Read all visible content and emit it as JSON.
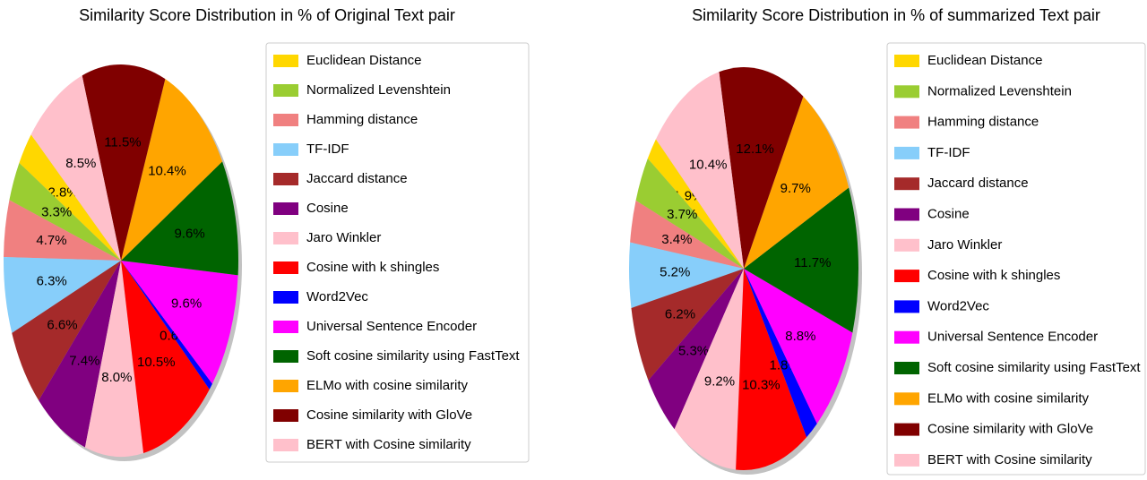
{
  "chart_data": [
    {
      "type": "pie",
      "title": "Similarity Score Distribution in % of Original Text pair",
      "categories": [
        "Euclidean Distance",
        "Normalized Levenshtein",
        "Hamming distance",
        "TF-IDF",
        "Jaccard distance",
        "Cosine",
        "Jaro Winkler",
        "Cosine with k shingles",
        "Word2Vec",
        "Universal Sentence Encoder",
        "Soft cosine similarity using FastText",
        "ELMo with cosine similarity",
        "Cosine similarity with GloVe",
        "BERT with Cosine similarity"
      ],
      "values": [
        2.8,
        3.3,
        4.7,
        6.3,
        6.6,
        7.4,
        8.0,
        10.5,
        0.6,
        9.6,
        9.6,
        10.4,
        11.5,
        8.5
      ],
      "value_labels": [
        "2.8%",
        "3.3%",
        "4.7%",
        "6.3%",
        "6.6%",
        "7.4%",
        "8.0%",
        "10.5%",
        "0.6%",
        "9.6%",
        "9.6%",
        "10.4%",
        "11.5%",
        "8.5%"
      ],
      "colors": [
        "#ffd700",
        "#9acd32",
        "#f08080",
        "#87cefa",
        "#a52a2a",
        "#800080",
        "#ffc0cb",
        "#ff0000",
        "#0000ff",
        "#ff00ff",
        "#006400",
        "#ffa500",
        "#800000",
        "#ffc0cb"
      ]
    },
    {
      "type": "pie",
      "title": "Similarity Score Distribution in % of summarized  Text pair",
      "categories": [
        "Euclidean Distance",
        "Normalized Levenshtein",
        "Hamming distance",
        "TF-IDF",
        "Jaccard distance",
        "Cosine",
        "Jaro Winkler",
        "Cosine with k shingles",
        "Word2Vec",
        "Universal Sentence Encoder",
        "Soft cosine similarity using FastText",
        "ELMo with cosine similarity",
        "Cosine similarity with GloVe",
        "BERT with Cosine similarity"
      ],
      "values": [
        1.9,
        3.7,
        3.4,
        5.2,
        6.2,
        5.3,
        9.2,
        10.3,
        1.8,
        8.8,
        11.7,
        9.7,
        12.1,
        10.4
      ],
      "value_labels": [
        "1.9%",
        "3.7%",
        "3.4%",
        "5.2%",
        "6.2%",
        "5.3%",
        "9.2%",
        "10.3%",
        "1.8%",
        "8.8%",
        "11.7%",
        "9.7%",
        "12.1%",
        "10.4%"
      ],
      "colors": [
        "#ffd700",
        "#9acd32",
        "#f08080",
        "#87cefa",
        "#a52a2a",
        "#800080",
        "#ffc0cb",
        "#ff0000",
        "#0000ff",
        "#ff00ff",
        "#006400",
        "#ffa500",
        "#800000",
        "#ffc0cb"
      ]
    }
  ]
}
